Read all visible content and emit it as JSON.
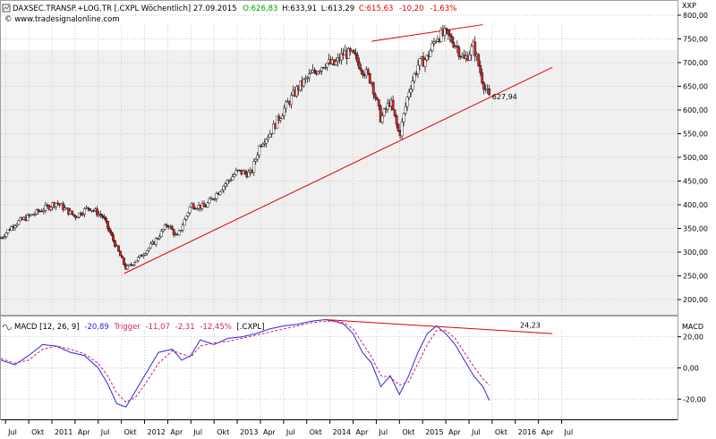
{
  "colors": {
    "price_bg": "#f0f0f0",
    "candle_up": "#ffffff",
    "candle_down": "#d42424",
    "trendline": "#e00000",
    "macd_line": "#2a2ae0",
    "trigger_line": "#d0206a",
    "green": "#00a000",
    "red_text": "#e00000"
  },
  "header": {
    "icon": "chart-icon",
    "instrument": "DAXSEC.TRANSP.+LOG.TR [.CXPL  Wöchentlich] 27.09.2015",
    "open": "O:626,83",
    "high": "H:633,91",
    "low": "L:613,29",
    "close": "C:615,63",
    "change": "-10,20",
    "change_pct": "-1,63%",
    "copyright": "© www.tradesignalonline.com"
  },
  "macd_header": {
    "macd_label": "MACD [12, 26, 9]",
    "macd_value": "-20,89",
    "trigger_label": "Trigger",
    "trigger_value": "-11,07",
    "diff": "-2,31",
    "diff_pct": "-12,45%",
    "symbol": "[.CXPL]"
  },
  "chart_data": [
    {
      "type": "candlestick",
      "panel": "price",
      "axis_unit": "XXP",
      "yticks": [
        200,
        250,
        300,
        350,
        400,
        450,
        500,
        550,
        600,
        650,
        700,
        750,
        800
      ],
      "ylim": [
        168,
        832
      ],
      "xlim": [
        2010.45,
        2017.75
      ],
      "key_points": {
        "x": [
          2010.45,
          2010.6,
          2010.85,
          2011.05,
          2011.25,
          2011.4,
          2011.55,
          2011.65,
          2011.8,
          2011.95,
          2012.1,
          2012.25,
          2012.35,
          2012.5,
          2012.65,
          2012.85,
          2013.0,
          2013.15,
          2013.25,
          2013.35,
          2013.5,
          2013.65,
          2013.8,
          2013.95,
          2014.05,
          2014.15,
          2014.25,
          2014.45,
          2014.55,
          2014.65,
          2014.75,
          2014.85,
          2014.95,
          2015.05,
          2015.15,
          2015.25,
          2015.35,
          2015.45,
          2015.55,
          2015.65,
          2015.72
        ],
        "y": [
          330,
          360,
          385,
          405,
          375,
          395,
          375,
          330,
          265,
          290,
          320,
          360,
          330,
          400,
          395,
          440,
          470,
          465,
          530,
          550,
          600,
          645,
          675,
          700,
          695,
          720,
          715,
          660,
          580,
          620,
          545,
          640,
          695,
          710,
          755,
          760,
          740,
          705,
          735,
          660,
          625
        ]
      },
      "annotation": "627,94",
      "trendlines": [
        {
          "x": [
            2011.78,
            2016.4
          ],
          "y": [
            255,
            690
          ]
        },
        {
          "x": [
            2014.45,
            2015.65
          ],
          "y": [
            745,
            780
          ]
        }
      ]
    },
    {
      "type": "line",
      "panel": "macd",
      "title": "MACD [12, 26, 9]",
      "axis_unit": "MACD",
      "yticks": [
        -20,
        0,
        20
      ],
      "ylim": [
        -33,
        33
      ],
      "series": [
        {
          "name": "MACD",
          "x": [
            2010.45,
            2010.6,
            2010.75,
            2010.9,
            2011.05,
            2011.2,
            2011.35,
            2011.5,
            2011.6,
            2011.7,
            2011.8,
            2011.9,
            2012.0,
            2012.15,
            2012.3,
            2012.4,
            2012.5,
            2012.6,
            2012.75,
            2012.9,
            2013.05,
            2013.2,
            2013.35,
            2013.5,
            2013.65,
            2013.8,
            2013.95,
            2014.05,
            2014.15,
            2014.25,
            2014.35,
            2014.45,
            2014.55,
            2014.65,
            2014.75,
            2014.85,
            2014.95,
            2015.05,
            2015.15,
            2015.25,
            2015.35,
            2015.45,
            2015.55,
            2015.65,
            2015.72
          ],
          "y": [
            5,
            2,
            8,
            15,
            14,
            10,
            8,
            0,
            -10,
            -23,
            -25,
            -15,
            -5,
            10,
            12,
            5,
            8,
            18,
            15,
            19,
            20,
            22,
            25,
            27,
            28,
            30,
            31,
            30,
            28,
            22,
            10,
            3,
            -12,
            -5,
            -17,
            -5,
            10,
            22,
            27,
            22,
            15,
            5,
            -5,
            -12,
            -20.89
          ]
        },
        {
          "name": "Trigger",
          "x": [
            2010.45,
            2010.6,
            2010.75,
            2010.9,
            2011.05,
            2011.2,
            2011.35,
            2011.5,
            2011.6,
            2011.7,
            2011.8,
            2011.9,
            2012.0,
            2012.15,
            2012.3,
            2012.4,
            2012.5,
            2012.6,
            2012.75,
            2012.9,
            2013.05,
            2013.2,
            2013.35,
            2013.5,
            2013.65,
            2013.8,
            2013.95,
            2014.05,
            2014.15,
            2014.25,
            2014.35,
            2014.45,
            2014.55,
            2014.65,
            2014.75,
            2014.85,
            2014.95,
            2015.05,
            2015.15,
            2015.25,
            2015.35,
            2015.45,
            2015.55,
            2015.65,
            2015.72
          ],
          "y": [
            6,
            3,
            5,
            12,
            14,
            12,
            9,
            3,
            -5,
            -16,
            -22,
            -19,
            -11,
            3,
            11,
            9,
            7,
            14,
            16,
            17,
            19,
            21,
            23,
            25,
            27,
            29,
            30,
            30,
            29,
            25,
            16,
            7,
            -5,
            -6,
            -11,
            -9,
            3,
            15,
            24,
            24,
            19,
            10,
            1,
            -7,
            -11.07
          ]
        }
      ],
      "trendline": {
        "x": [
          2013.95,
          2016.4
        ],
        "y": [
          31,
          22
        ]
      },
      "annotation": "24,23"
    }
  ],
  "x_axis": {
    "ticks": [
      {
        "x": 2010.5,
        "label": "Jul"
      },
      {
        "x": 2010.75,
        "label": "Okt"
      },
      {
        "x": 2011.0,
        "label": "2011"
      },
      {
        "x": 2011.25,
        "label": "Apr"
      },
      {
        "x": 2011.5,
        "label": "Jul"
      },
      {
        "x": 2011.75,
        "label": "Okt"
      },
      {
        "x": 2012.0,
        "label": "2012"
      },
      {
        "x": 2012.25,
        "label": "Apr"
      },
      {
        "x": 2012.5,
        "label": "Jul"
      },
      {
        "x": 2012.75,
        "label": "Okt"
      },
      {
        "x": 2013.0,
        "label": "2013"
      },
      {
        "x": 2013.25,
        "label": "Apr"
      },
      {
        "x": 2013.5,
        "label": "Jul"
      },
      {
        "x": 2013.75,
        "label": "Okt"
      },
      {
        "x": 2014.0,
        "label": "2014"
      },
      {
        "x": 2014.25,
        "label": "Apr"
      },
      {
        "x": 2014.5,
        "label": "Jul"
      },
      {
        "x": 2014.75,
        "label": "Okt"
      },
      {
        "x": 2015.0,
        "label": "2015"
      },
      {
        "x": 2015.25,
        "label": "Apr"
      },
      {
        "x": 2015.5,
        "label": "Jul"
      },
      {
        "x": 2015.75,
        "label": "Okt"
      },
      {
        "x": 2016.0,
        "label": "2016"
      },
      {
        "x": 2016.25,
        "label": "Apr"
      },
      {
        "x": 2016.5,
        "label": "Jul"
      }
    ]
  }
}
